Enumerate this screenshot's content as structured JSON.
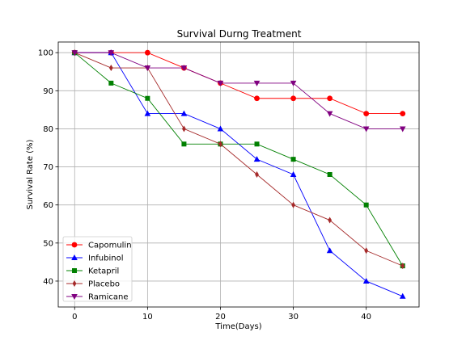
{
  "chart_data": {
    "type": "line",
    "title": "Survival Durng Treatment",
    "xlabel": "Time(Days)",
    "ylabel": "Survival Rate (%)",
    "xlim": [
      -2.25,
      47.25
    ],
    "ylim": [
      33.2,
      102.8
    ],
    "xticks": [
      0,
      10,
      20,
      30,
      40
    ],
    "yticks": [
      40,
      50,
      60,
      70,
      80,
      90,
      100
    ],
    "grid": true,
    "legend_position": "lower-left",
    "x": [
      0,
      5,
      10,
      15,
      20,
      25,
      30,
      35,
      40,
      45
    ],
    "series": [
      {
        "name": "Capomulin",
        "color": "#ff0000",
        "marker": "circle",
        "values": [
          100,
          100,
          100,
          96,
          92,
          88,
          88,
          88,
          84,
          84
        ]
      },
      {
        "name": "Infubinol",
        "color": "#0000ff",
        "marker": "triangle-up",
        "values": [
          100,
          100,
          84,
          84,
          80,
          72,
          68,
          48,
          40,
          36
        ]
      },
      {
        "name": "Ketapril",
        "color": "#008000",
        "marker": "square",
        "values": [
          100,
          92,
          88,
          76,
          76,
          76,
          72,
          68,
          60,
          44
        ]
      },
      {
        "name": "Placebo",
        "color": "#a52a2a",
        "marker": "thin-diamond",
        "values": [
          100,
          96,
          96,
          80,
          76,
          68,
          60,
          56,
          48,
          44
        ]
      },
      {
        "name": "Ramicane",
        "color": "#800080",
        "marker": "triangle-down",
        "values": [
          100,
          100,
          96,
          96,
          92,
          92,
          92,
          84,
          80,
          80
        ]
      }
    ]
  }
}
